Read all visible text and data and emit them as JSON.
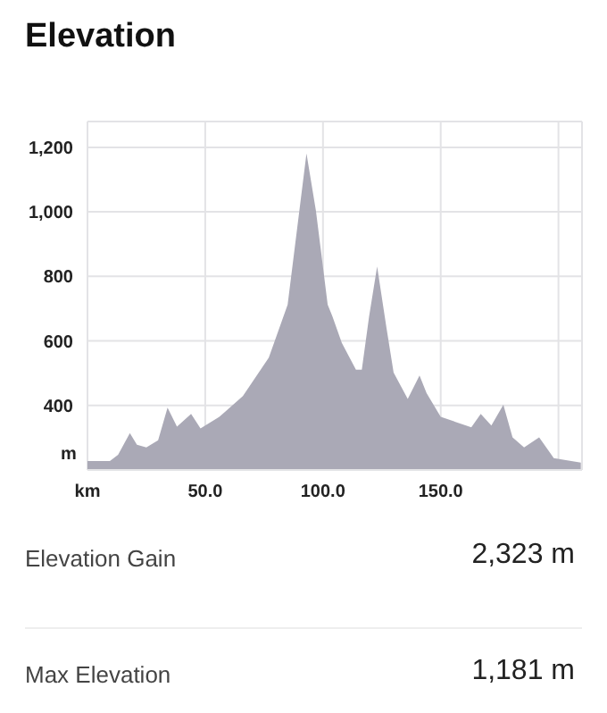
{
  "chart_data": {
    "type": "area",
    "title": "Elevation",
    "xlabel": null,
    "ylabel": "m",
    "x": [
      0,
      9.5,
      13,
      18,
      21,
      25,
      30,
      34,
      38,
      44,
      48,
      56,
      66,
      77,
      85,
      93,
      97,
      102,
      104,
      108,
      114,
      116.5,
      119.6,
      123,
      127,
      130,
      136,
      141,
      144,
      150,
      163,
      167,
      171.5,
      176.6,
      180.5,
      185.4,
      191.8,
      198,
      209.5
    ],
    "series": [
      {
        "color": "#aaa9b6",
        "values": [
          228,
          228,
          247,
          314,
          278,
          270,
          292,
          393,
          334,
          374,
          329,
          365,
          429,
          548,
          712,
          1181,
          1004,
          712,
          676,
          594,
          511,
          511,
          676,
          831,
          639,
          502,
          420,
          493,
          438,
          365,
          332,
          374,
          338,
          402,
          301,
          270,
          301,
          237,
          223
        ]
      }
    ],
    "xlim": [
      0,
      210
    ],
    "ylim": [
      200,
      1280
    ],
    "xticks": [
      {
        "value": 0,
        "label": "km"
      },
      {
        "value": 50,
        "label": "50.0"
      },
      {
        "value": 100,
        "label": "100.0"
      },
      {
        "value": 150,
        "label": "150.0"
      },
      {
        "value": 200,
        "label": null
      }
    ],
    "yticks": [
      400,
      600,
      800,
      {
        "value": 1000,
        "label": "1,000"
      },
      {
        "value": 1200,
        "label": "1,200"
      }
    ],
    "grid": true,
    "annotations": [
      "Elevation Gain",
      "2,323 m",
      "Max Elevation",
      "1,181 m"
    ]
  }
}
